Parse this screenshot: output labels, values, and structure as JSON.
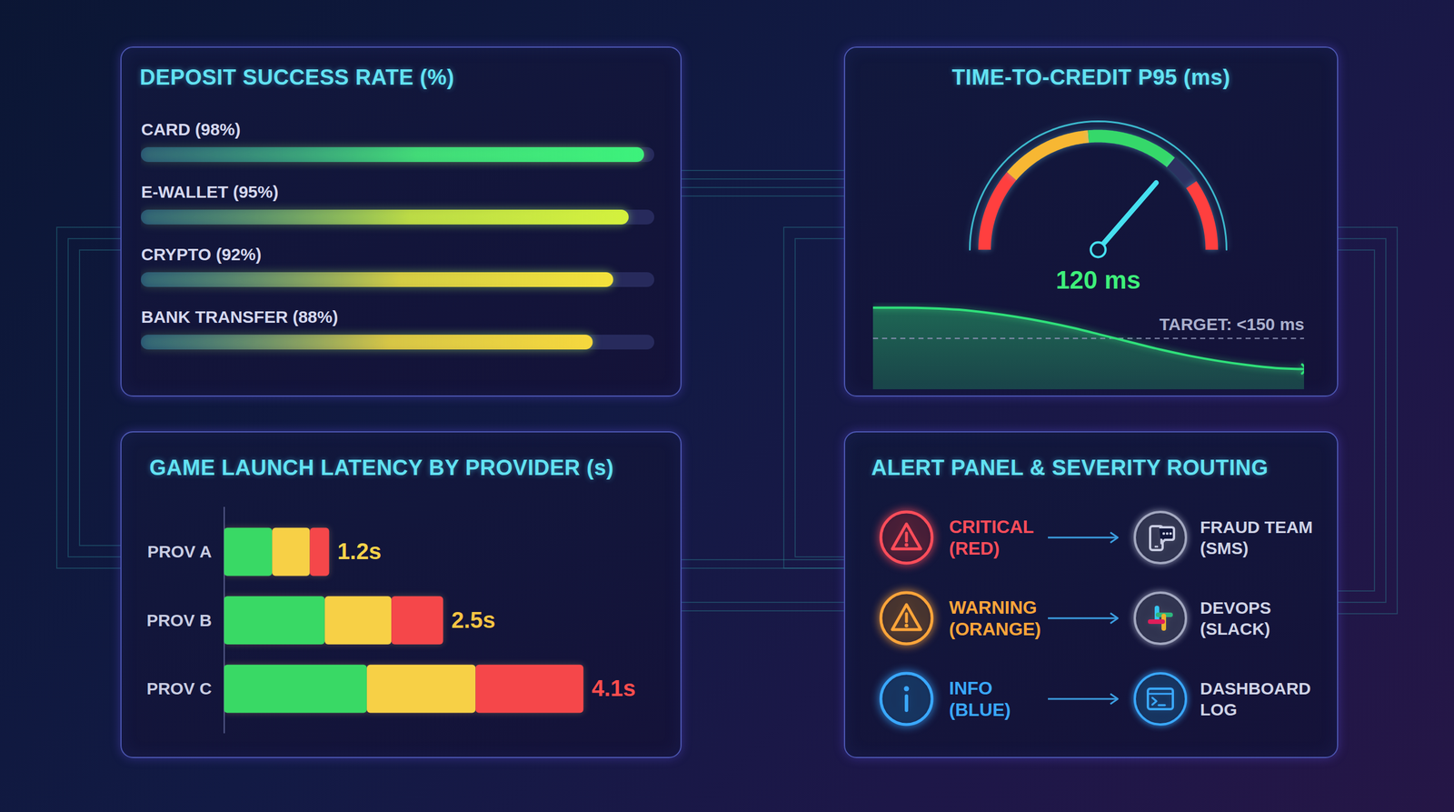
{
  "chart_data": [
    {
      "type": "bar",
      "title": "DEPOSIT SUCCESS RATE (%)",
      "orientation": "horizontal",
      "categories": [
        "CARD (98%)",
        "E-WALLET (95%)",
        "CRYPTO (92%)",
        "BANK TRANSFER (88%)"
      ],
      "values": [
        98,
        95,
        92,
        88
      ],
      "colors": [
        "#3df27c",
        "#d4f23e",
        "#f3e23c",
        "#f6d83e"
      ],
      "xlim": [
        0,
        100
      ],
      "tick_labels": false,
      "grid": false
    },
    {
      "type": "gauge",
      "title": "TIME-TO-CREDIT P95 (ms)",
      "gauge": {
        "min": 0,
        "max": 165,
        "value": 120,
        "value_label": "120 ms",
        "color": "#46e0f0",
        "bands": [
          {
            "from": 0,
            "to": 37,
            "color": "#ff3f3f"
          },
          {
            "from": 37,
            "to": 78,
            "color": "#f7b733"
          },
          {
            "from": 78,
            "to": 119,
            "color": "#35d86a"
          },
          {
            "from": 119,
            "to": 133,
            "color": "#2c3160"
          },
          {
            "from": 133,
            "to": 165,
            "color": "#ff3f3f"
          }
        ]
      },
      "trend": {
        "type": "area",
        "x": [
          0,
          1,
          2,
          3,
          4,
          5,
          6,
          7,
          8,
          9,
          10,
          11,
          12,
          13,
          14,
          15
        ],
        "values": [
          180,
          180,
          179.5,
          178,
          175,
          171,
          166,
          160,
          153,
          146,
          139,
          133,
          128,
          124,
          121,
          120
        ],
        "color": "#2fe07a",
        "marker": "arrow",
        "xlim": [
          0,
          15
        ],
        "ylim": [
          100,
          185
        ],
        "target": {
          "value": 150,
          "label": "TARGET: <150 ms",
          "line_style": "dashed"
        }
      },
      "tick_labels": false
    },
    {
      "type": "bar",
      "title": "GAME LAUNCH LATENCY BY PROVIDER (s)",
      "orientation": "horizontal",
      "stacked": true,
      "categories": [
        "PROV A",
        "PROV B",
        "PROV C"
      ],
      "series": [
        {
          "color": "#39d965",
          "values": [
            0.55,
            1.15,
            1.63
          ]
        },
        {
          "color": "#f7d046",
          "values": [
            0.43,
            0.76,
            1.24
          ]
        },
        {
          "color": "#f5474a",
          "values": [
            0.22,
            0.59,
            1.23
          ]
        }
      ],
      "totals": [
        1.2,
        2.5,
        4.1
      ],
      "value_labels": [
        "1.2s",
        "2.5s",
        "4.1s"
      ],
      "xlim": [
        0,
        5
      ],
      "tick_labels": "y",
      "data_labels": true
    }
  ],
  "alert_panel": {
    "title": "ALERT PANEL & SEVERITY ROUTING",
    "rows": [
      {
        "severity": [
          "CRITICAL",
          "(RED)"
        ],
        "color": "#ff4d5a",
        "route": [
          "FRAUD TEAM",
          "(SMS)"
        ]
      },
      {
        "severity": [
          "WARNING",
          "(ORANGE)"
        ],
        "color": "#ffa53a",
        "route": [
          "DEVOPS",
          "(SLACK)"
        ]
      },
      {
        "severity": [
          "INFO",
          "(BLUE)"
        ],
        "color": "#3aa8ff",
        "route": [
          "DASHBOARD",
          "LOG"
        ]
      }
    ]
  }
}
